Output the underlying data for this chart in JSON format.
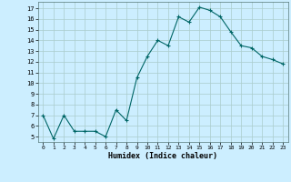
{
  "x": [
    0,
    1,
    2,
    3,
    4,
    5,
    6,
    7,
    8,
    9,
    10,
    11,
    12,
    13,
    14,
    15,
    16,
    17,
    18,
    19,
    20,
    21,
    22,
    23
  ],
  "y": [
    7,
    4.8,
    7,
    5.5,
    5.5,
    5.5,
    5,
    7.5,
    6.5,
    10.5,
    12.5,
    14,
    13.5,
    16.2,
    15.7,
    17.1,
    16.8,
    16.2,
    14.8,
    13.5,
    13.3,
    12.5,
    12.2,
    11.8
  ],
  "line_color": "#006666",
  "marker": "+",
  "marker_size": 3,
  "bg_color": "#cceeff",
  "grid_color": "#aacccc",
  "xlabel": "Humidex (Indice chaleur)",
  "xlim": [
    -0.5,
    23.5
  ],
  "ylim": [
    4.5,
    17.6
  ],
  "yticks": [
    5,
    6,
    7,
    8,
    9,
    10,
    11,
    12,
    13,
    14,
    15,
    16,
    17
  ],
  "xticks": [
    0,
    1,
    2,
    3,
    4,
    5,
    6,
    7,
    8,
    9,
    10,
    11,
    12,
    13,
    14,
    15,
    16,
    17,
    18,
    19,
    20,
    21,
    22,
    23
  ]
}
